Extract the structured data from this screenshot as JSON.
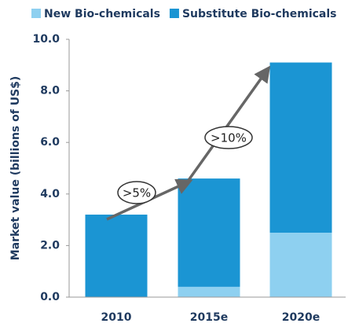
{
  "chart_data": {
    "type": "stacked_bar",
    "y_label": "Market value (billions of US$)",
    "categories": [
      "2010",
      "2015e",
      "2020e"
    ],
    "series": [
      {
        "name": "New Bio-chemicals",
        "color": "#8ed0f0",
        "values": [
          0,
          0.4,
          2.5
        ]
      },
      {
        "name": "Substitute Bio-chemicals",
        "color": "#1b95d3",
        "values": [
          3.2,
          4.2,
          6.6
        ]
      }
    ],
    "ylim": [
      0,
      10
    ],
    "yticks": [
      {
        "value": 0,
        "label": "0.0"
      },
      {
        "value": 2,
        "label": "2.0"
      },
      {
        "value": 4,
        "label": "4.0"
      },
      {
        "value": 6,
        "label": "6.0"
      },
      {
        "value": 8,
        "label": "8.0"
      },
      {
        "value": 10,
        "label": "10.0"
      }
    ],
    "annotations": [
      ">5%",
      ">10%"
    ]
  }
}
